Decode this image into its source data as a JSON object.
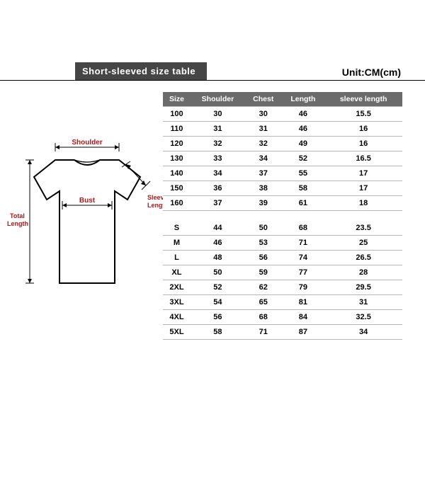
{
  "header": {
    "title": "Short-sleeved size  table",
    "unit": "Unit:CM(cm)"
  },
  "diagram": {
    "labels": {
      "shoulder": "Shoulder",
      "bust": "Bust",
      "sleeve_length": "Sleeve\nLength",
      "total_length": "Total\nLength"
    },
    "colors": {
      "shirt_outline": "#000000",
      "label_shoulder": "#b01818",
      "label_bust": "#b01818",
      "label_sleeve": "#b01818",
      "label_total": "#b01818",
      "dimension_line": "#000000"
    }
  },
  "table": {
    "type": "table",
    "background_color": "#ffffff",
    "header_bg": "#6b6b6b",
    "header_fg": "#ffffff",
    "row_border_color": "#b8b8b8",
    "font_size": 11,
    "columns": [
      "Size",
      "Shoulder",
      "Chest",
      "Length",
      "sleeve length"
    ],
    "rows_kids": [
      [
        "100",
        "30",
        "30",
        "46",
        "15.5"
      ],
      [
        "110",
        "31",
        "31",
        "46",
        "16"
      ],
      [
        "120",
        "32",
        "32",
        "49",
        "16"
      ],
      [
        "130",
        "33",
        "34",
        "52",
        "16.5"
      ],
      [
        "140",
        "34",
        "37",
        "55",
        "17"
      ],
      [
        "150",
        "36",
        "38",
        "58",
        "17"
      ],
      [
        "160",
        "37",
        "39",
        "61",
        "18"
      ]
    ],
    "rows_adult": [
      [
        "S",
        "44",
        "50",
        "68",
        "23.5"
      ],
      [
        "M",
        "46",
        "53",
        "71",
        "25"
      ],
      [
        "L",
        "48",
        "56",
        "74",
        "26.5"
      ],
      [
        "XL",
        "50",
        "59",
        "77",
        "28"
      ],
      [
        "2XL",
        "52",
        "62",
        "79",
        "29.5"
      ],
      [
        "3XL",
        "54",
        "65",
        "81",
        "31"
      ],
      [
        "4XL",
        "56",
        "68",
        "84",
        "32.5"
      ],
      [
        "5XL",
        "58",
        "71",
        "87",
        "34"
      ]
    ]
  }
}
